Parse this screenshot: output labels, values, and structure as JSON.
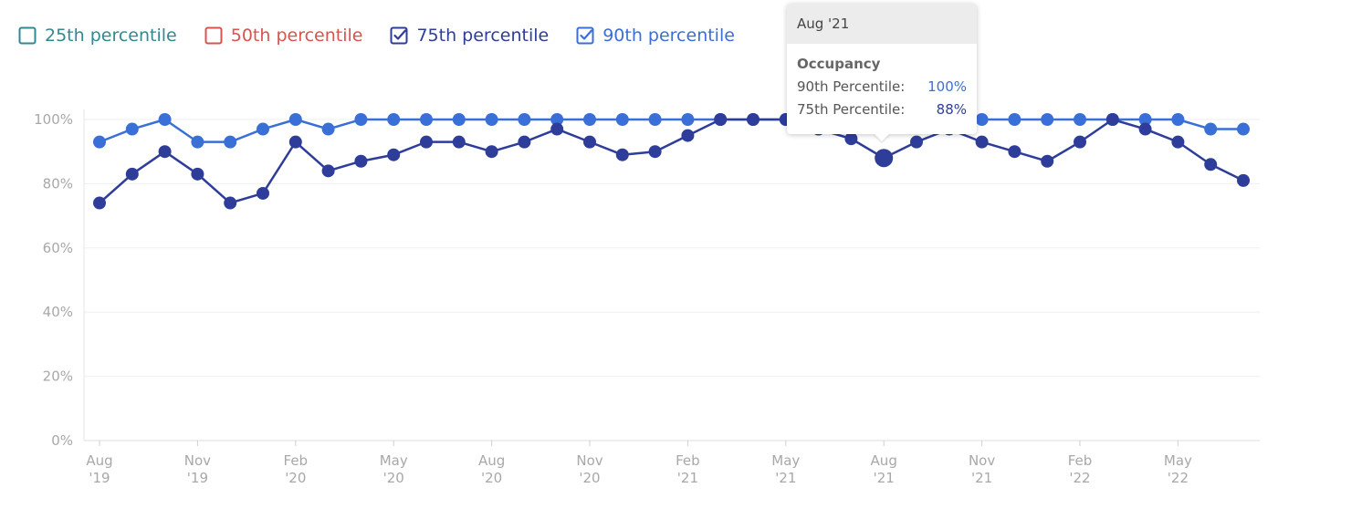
{
  "legend": [
    {
      "label": "25th percentile",
      "color": "#2f8a91",
      "checked": false
    },
    {
      "label": "50th percentile",
      "color": "#d9534f",
      "checked": false
    },
    {
      "label": "75th percentile",
      "color": "#2e3d9a",
      "checked": true
    },
    {
      "label": "90th percentile",
      "color": "#3a6fd8",
      "checked": true
    }
  ],
  "tooltip": {
    "header": "Aug '21",
    "title": "Occupancy",
    "rows": [
      {
        "label": "90th Percentile:",
        "value": "100%",
        "color": "#3a6fd8"
      },
      {
        "label": "75th Percentile:",
        "value": "88%",
        "color": "#2e3d9a"
      }
    ]
  },
  "chart_data": {
    "type": "line",
    "x": [
      "Aug '19",
      "Sep '19",
      "Oct '19",
      "Nov '19",
      "Dec '19",
      "Jan '20",
      "Feb '20",
      "Mar '20",
      "Apr '20",
      "May '20",
      "Jun '20",
      "Jul '20",
      "Aug '20",
      "Sep '20",
      "Oct '20",
      "Nov '20",
      "Dec '20",
      "Jan '21",
      "Feb '21",
      "Mar '21",
      "Apr '21",
      "May '21",
      "Jun '21",
      "Jul '21",
      "Aug '21",
      "Sep '21",
      "Oct '21",
      "Nov '21",
      "Dec '21",
      "Jan '22",
      "Feb '22",
      "Mar '22",
      "Apr '22",
      "May '22",
      "Jun '22",
      "Jul '22"
    ],
    "x_ticks": [
      {
        "index": 0,
        "month": "Aug",
        "year": "'19"
      },
      {
        "index": 3,
        "month": "Nov",
        "year": "'19"
      },
      {
        "index": 6,
        "month": "Feb",
        "year": "'20"
      },
      {
        "index": 9,
        "month": "May",
        "year": "'20"
      },
      {
        "index": 12,
        "month": "Aug",
        "year": "'20"
      },
      {
        "index": 15,
        "month": "Nov",
        "year": "'20"
      },
      {
        "index": 18,
        "month": "Feb",
        "year": "'21"
      },
      {
        "index": 21,
        "month": "May",
        "year": "'21"
      },
      {
        "index": 24,
        "month": "Aug",
        "year": "'21"
      },
      {
        "index": 27,
        "month": "Nov",
        "year": "'21"
      },
      {
        "index": 30,
        "month": "Feb",
        "year": "'22"
      },
      {
        "index": 33,
        "month": "May",
        "year": "'22"
      }
    ],
    "y_ticks": [
      "0%",
      "20%",
      "40%",
      "60%",
      "80%",
      "100%"
    ],
    "ylim": [
      0,
      100
    ],
    "grid": true,
    "highlight_index": 24,
    "series": [
      {
        "name": "90th percentile",
        "color": "#3a6fd8",
        "values": [
          93,
          97,
          100,
          93,
          93,
          97,
          100,
          97,
          100,
          100,
          100,
          100,
          100,
          100,
          100,
          100,
          100,
          100,
          100,
          100,
          100,
          100,
          97,
          98,
          100,
          100,
          100,
          100,
          100,
          100,
          100,
          100,
          100,
          100,
          97,
          97
        ]
      },
      {
        "name": "75th percentile",
        "color": "#2e3d9a",
        "values": [
          74,
          83,
          90,
          83,
          74,
          77,
          93,
          84,
          87,
          89,
          93,
          93,
          90,
          93,
          97,
          93,
          89,
          90,
          95,
          100,
          100,
          100,
          97,
          94,
          88,
          93,
          97,
          93,
          90,
          87,
          93,
          100,
          97,
          93,
          86,
          81
        ]
      }
    ]
  }
}
